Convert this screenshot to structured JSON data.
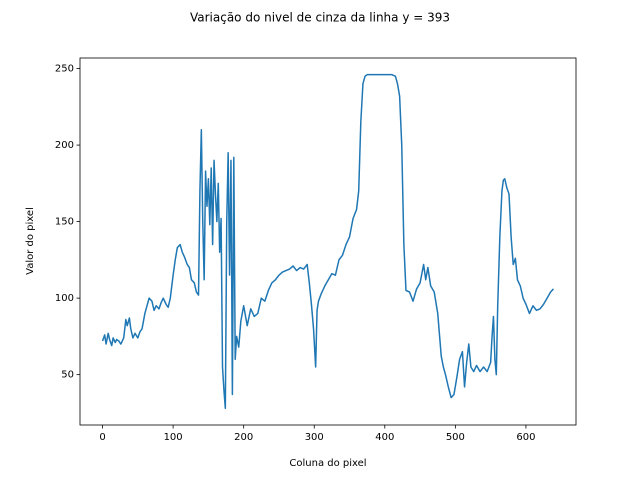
{
  "chart_data": {
    "type": "line",
    "title": "Variação do nivel de cinza da linha y = 393",
    "x_label": "Coluna do pixel",
    "y_label": "Valor do pixel",
    "xlim": [
      -31.95,
      670.95
    ],
    "ylim": [
      17.1,
      256.9
    ],
    "xticks": [
      0,
      100,
      200,
      300,
      400,
      500,
      600
    ],
    "yticks": [
      50,
      100,
      150,
      200,
      250
    ],
    "grid": false,
    "series": [
      {
        "color": "#1f77b4",
        "x": [
          0,
          3,
          5,
          8,
          10,
          13,
          15,
          18,
          20,
          23,
          26,
          30,
          33,
          35,
          38,
          40,
          43,
          46,
          50,
          53,
          56,
          60,
          63,
          66,
          70,
          73,
          76,
          80,
          83,
          86,
          90,
          93,
          96,
          100,
          103,
          106,
          110,
          113,
          116,
          120,
          123,
          126,
          130,
          133,
          136,
          138,
          140,
          142,
          144,
          146,
          148,
          150,
          152,
          154,
          156,
          158,
          160,
          162,
          164,
          166,
          168,
          170,
          172,
          174,
          176,
          178,
          180,
          182,
          184,
          186,
          188,
          190,
          193,
          196,
          200,
          205,
          210,
          215,
          220,
          225,
          230,
          235,
          240,
          245,
          250,
          255,
          260,
          265,
          270,
          275,
          280,
          285,
          290,
          293,
          296,
          299,
          302,
          304,
          306,
          310,
          315,
          320,
          325,
          330,
          335,
          340,
          345,
          350,
          355,
          360,
          363,
          366,
          369,
          372,
          375,
          380,
          390,
          400,
          410,
          415,
          418,
          421,
          424,
          427,
          430,
          435,
          440,
          445,
          450,
          455,
          458,
          461,
          465,
          470,
          475,
          480,
          483,
          486,
          490,
          494,
          498,
          502,
          506,
          510,
          513,
          516,
          519,
          522,
          526,
          530,
          535,
          540,
          545,
          550,
          552,
          554,
          556,
          558,
          560,
          563,
          566,
          568,
          570,
          573,
          576,
          579,
          582,
          585,
          588,
          592,
          596,
          600,
          605,
          610,
          615,
          620,
          625,
          630,
          635,
          639
        ],
        "values": [
          72,
          76,
          70,
          77,
          73,
          69,
          74,
          71,
          73,
          72,
          70,
          74,
          86,
          82,
          87,
          80,
          74,
          77,
          74,
          78,
          80,
          90,
          95,
          100,
          98,
          92,
          95,
          93,
          97,
          100,
          96,
          94,
          100,
          115,
          125,
          133,
          135,
          130,
          127,
          122,
          120,
          112,
          110,
          104,
          102,
          170,
          210,
          150,
          112,
          183,
          160,
          178,
          148,
          185,
          135,
          190,
          168,
          150,
          175,
          130,
          152,
          55,
          40,
          28,
          150,
          195,
          115,
          190,
          37,
          192,
          60,
          75,
          68,
          85,
          95,
          82,
          93,
          88,
          90,
          100,
          98,
          105,
          110,
          112,
          115,
          117,
          118,
          119,
          121,
          118,
          120,
          119,
          122,
          110,
          96,
          80,
          55,
          92,
          98,
          103,
          108,
          112,
          116,
          115,
          125,
          128,
          135,
          140,
          152,
          158,
          170,
          215,
          240,
          245,
          246,
          246,
          246,
          246,
          246,
          245,
          240,
          232,
          200,
          135,
          105,
          104,
          98,
          106,
          110,
          122,
          112,
          120,
          108,
          104,
          90,
          62,
          55,
          50,
          42,
          35,
          37,
          48,
          60,
          65,
          42,
          58,
          70,
          55,
          52,
          56,
          52,
          55,
          52,
          58,
          75,
          88,
          60,
          50,
          95,
          140,
          170,
          177,
          178,
          172,
          168,
          140,
          122,
          126,
          112,
          108,
          100,
          96,
          90,
          95,
          92,
          93,
          96,
          100,
          104,
          106
        ]
      }
    ]
  }
}
